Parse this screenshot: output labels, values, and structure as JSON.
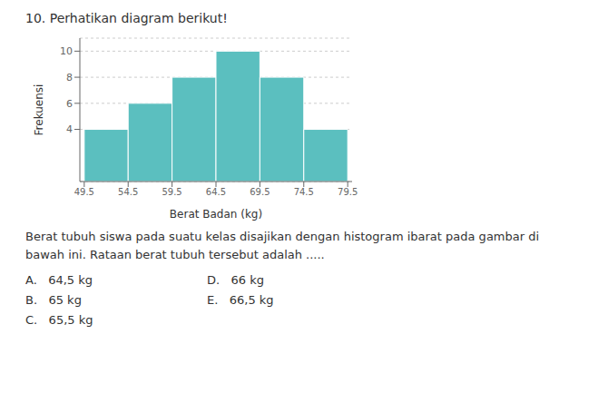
{
  "chart_data": {
    "type": "histogram",
    "title": "10.  Perhatikan diagram berikut!",
    "xlabel": "Berat Badan (kg)",
    "ylabel": "Frekuensi",
    "bins": [
      49.5,
      54.5,
      59.5,
      64.5,
      69.5,
      74.5,
      79.5
    ],
    "values": [
      4,
      6,
      8,
      10,
      8,
      4
    ],
    "color": "#5bbfbf",
    "xlim": [
      49,
      80
    ],
    "xticks": [
      49.5,
      54.5,
      59.5,
      64.5,
      69.5,
      74.5,
      79.5
    ],
    "ylim": [
      0,
      11
    ],
    "yticks": [
      4,
      6,
      8,
      10
    ],
    "grid": true,
    "annotations": [
      "Berat tubuh siswa pada suatu kelas disajikan dengan histogram ibarat pada gambar di\nbawah ini. Rataan berat tubuh tersebut adalah .....",
      "A.   64,5 kg",
      "B.   65 kg",
      "C.   65,5 kg",
      "D.   66 kg",
      "E.   66,5 kg"
    ]
  }
}
